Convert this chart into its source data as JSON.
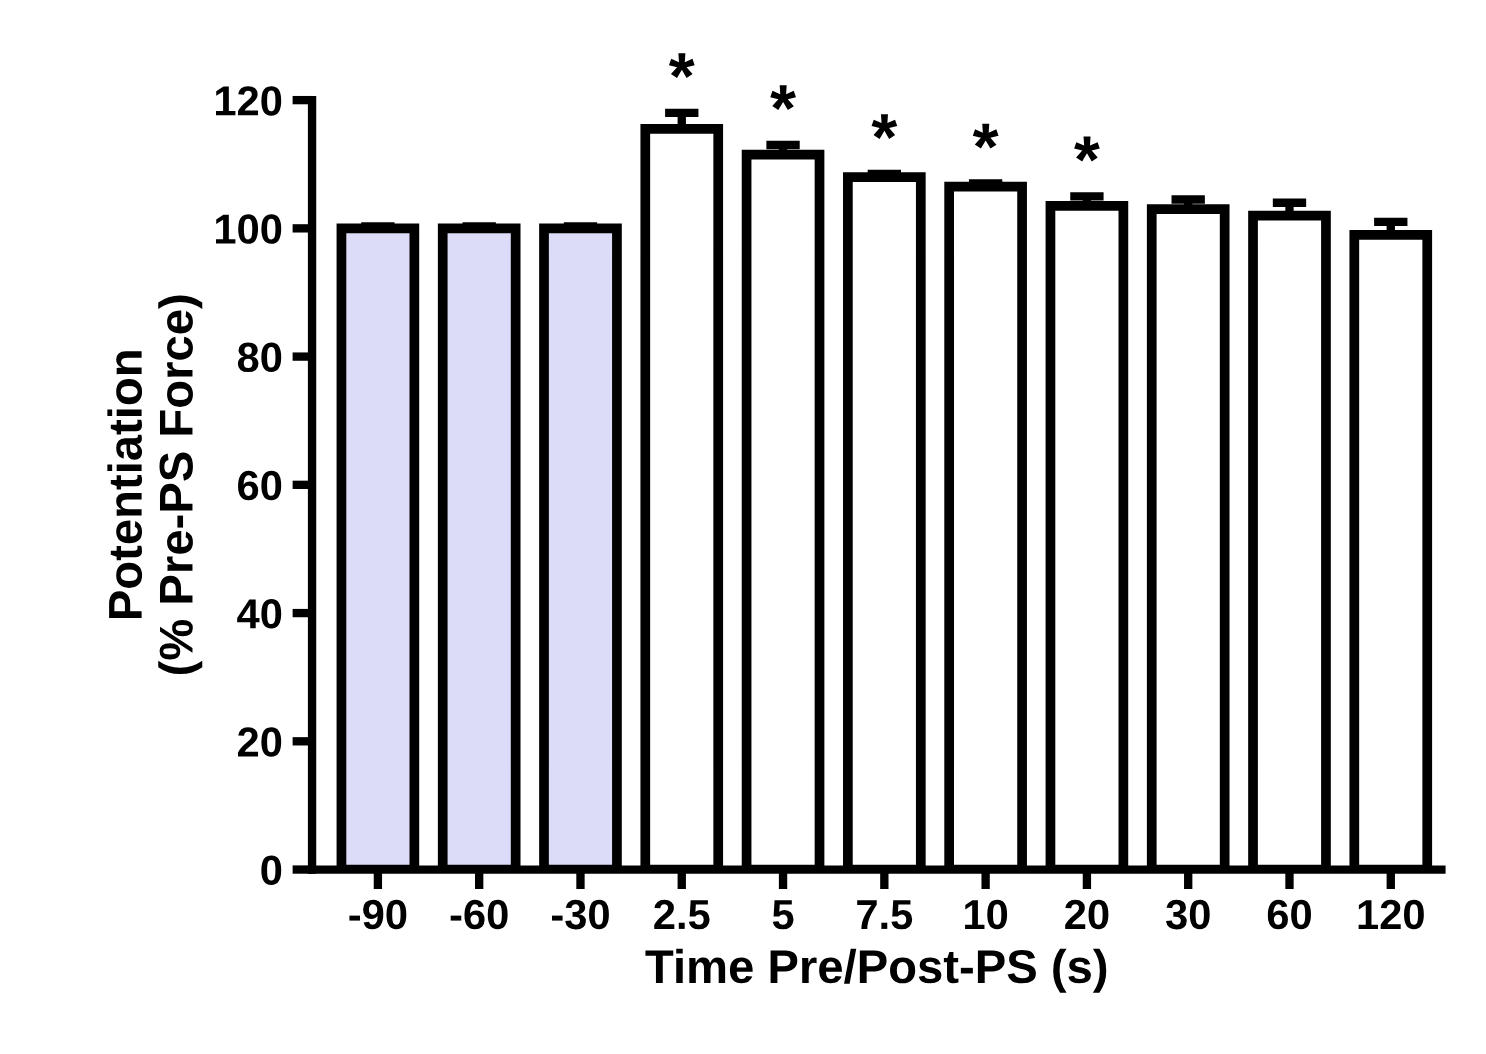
{
  "chart_data": {
    "type": "bar",
    "xlabel": "Time Pre/Post-PS (s)",
    "ylabel": "Potentiation\n(% Pre-PS Force)",
    "categories": [
      "-90",
      "-60",
      "-30",
      "2.5",
      "5",
      "7.5",
      "10",
      "20",
      "30",
      "60",
      "120"
    ],
    "values": [
      100,
      100,
      100,
      115.5,
      111.5,
      108,
      106.5,
      103.5,
      103,
      102,
      99
    ],
    "errors": [
      0.3,
      0.3,
      0.3,
      2.5,
      1.5,
      0.5,
      0.5,
      1.5,
      1.5,
      2,
      2
    ],
    "colors": [
      "#dcdcf8",
      "#dcdcf8",
      "#dcdcf8",
      "#ffffff",
      "#ffffff",
      "#ffffff",
      "#ffffff",
      "#ffffff",
      "#ffffff",
      "#ffffff",
      "#ffffff"
    ],
    "ylim": [
      0,
      120
    ],
    "yticks": [
      0,
      20,
      40,
      60,
      80,
      100,
      120
    ],
    "grid": false,
    "annotations": [
      {
        "text": "*",
        "x": "2.5",
        "y": 118
      },
      {
        "text": "*",
        "x": "5",
        "y": 113
      },
      {
        "text": "*",
        "x": "7.5",
        "y": 108.5
      },
      {
        "text": "*",
        "x": "10",
        "y": 107
      },
      {
        "text": "*",
        "x": "20",
        "y": 105
      }
    ]
  }
}
